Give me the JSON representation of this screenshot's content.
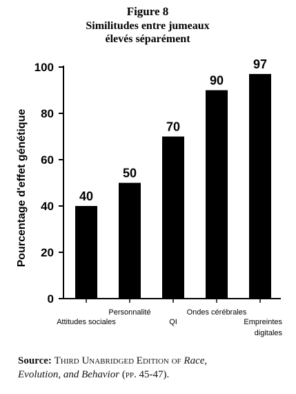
{
  "chart_data": {
    "type": "bar",
    "title": "Figure 8",
    "subtitle": [
      "Similitudes entre jumeaux",
      "élevés séparément"
    ],
    "ylabel": "Pourcentage d'effet génétique",
    "xlabel": "",
    "ylim": [
      0,
      100
    ],
    "yticks": [
      0,
      20,
      40,
      60,
      80,
      100
    ],
    "grid": false,
    "categories": [
      "Attitudes sociales",
      "Personnalité",
      "QI",
      "Ondes cérébrales",
      "Empreintes digitales"
    ],
    "category_lines": [
      [
        "Attitudes sociales"
      ],
      [
        "Personnalité"
      ],
      [
        "QI"
      ],
      [
        "Ondes cérébrales"
      ],
      [
        "Empreintes",
        "digitales"
      ]
    ],
    "values": [
      40,
      50,
      70,
      90,
      97
    ],
    "bar_color": "#000000"
  },
  "source": {
    "label": "Source:",
    "part1": "Third Unabridged Edition of",
    "italic1": "Race,",
    "italic2": "Evolution, and Behavior",
    "part2": "(pp. 45-47)."
  }
}
